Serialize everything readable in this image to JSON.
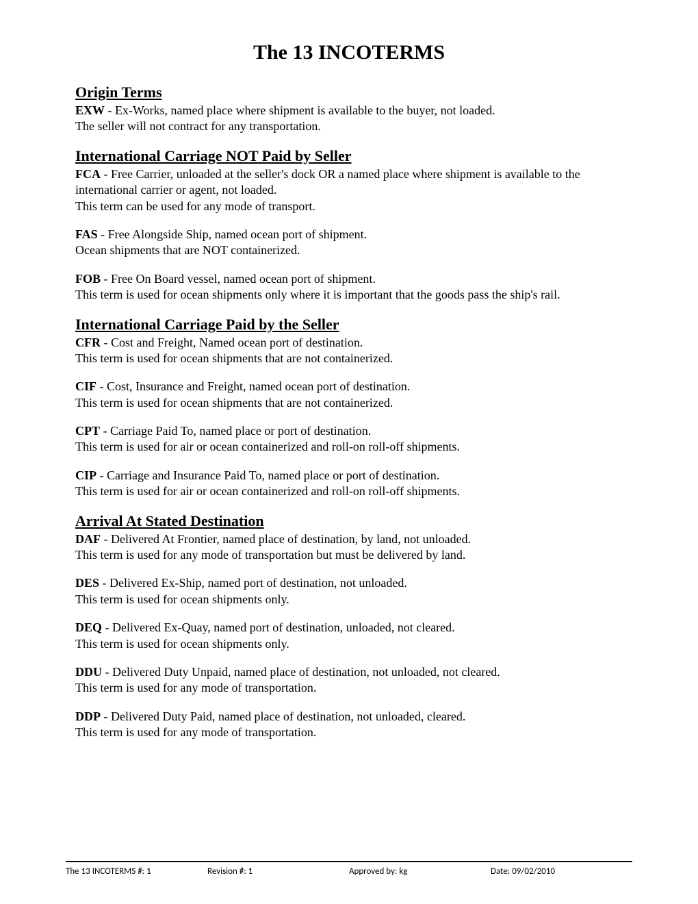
{
  "title": "The 13 INCOTERMS",
  "sections": [
    {
      "heading": "Origin Terms",
      "terms": [
        {
          "code": "EXW",
          "desc": " - Ex-Works, named place where shipment is available to the buyer, not loaded.",
          "note": "The seller will not contract for any transportation."
        }
      ]
    },
    {
      "heading": "International Carriage NOT Paid by Seller",
      "terms": [
        {
          "code": "FCA",
          "desc": " - Free Carrier, unloaded at the seller's dock OR a named place where shipment is available to the international carrier or agent, not loaded.",
          "note": "This term can be used for any mode of transport."
        },
        {
          "code": "FAS",
          "desc": " - Free Alongside Ship, named ocean port of shipment.",
          "note": "Ocean shipments that are NOT containerized."
        },
        {
          "code": "FOB",
          "desc": " - Free On Board vessel, named ocean port of shipment.",
          "note": "This term is used for ocean shipments only where it is important that the goods pass the ship's rail."
        }
      ]
    },
    {
      "heading": "International Carriage Paid by the Seller",
      "terms": [
        {
          "code": "CFR",
          "desc": " - Cost and Freight, Named ocean port of destination.",
          "note": "This term is used for ocean shipments that are not containerized."
        },
        {
          "code": "CIF",
          "desc": " - Cost, Insurance and Freight, named ocean port of destination.",
          "note": "This term is used for ocean shipments that are not containerized."
        },
        {
          "code": "CPT",
          "desc": " - Carriage Paid To, named place or port of destination.",
          "note": "This term is used for air or ocean containerized and roll-on roll-off shipments."
        },
        {
          "code": "CIP",
          "desc": " - Carriage and Insurance Paid To, named place or port of destination.",
          "note": "This term is used for air or ocean containerized and roll-on roll-off shipments."
        }
      ]
    },
    {
      "heading": "Arrival At Stated Destination",
      "terms": [
        {
          "code": "DAF",
          "desc": " - Delivered At Frontier, named place of destination, by land, not unloaded.",
          "note": "This term is used for any mode of transportation but must be delivered by land."
        },
        {
          "code": "DES",
          "desc": " - Delivered Ex-Ship, named port of destination, not unloaded.",
          "note": "This term is used for ocean shipments only."
        },
        {
          "code": "DEQ",
          "desc": " - Delivered Ex-Quay, named port of destination, unloaded, not cleared.",
          "note": "This term is used for ocean shipments only."
        },
        {
          "code": "DDU",
          "desc": " - Delivered Duty Unpaid, named place of destination, not unloaded, not cleared.",
          "note": "This term is used for any mode of transportation."
        },
        {
          "code": "DDP",
          "desc": " - Delivered Duty Paid, named place of destination, not unloaded, cleared.",
          "note": "This term is used for any mode of transportation."
        }
      ]
    }
  ],
  "footer": {
    "doc_id": "The 13 INCOTERMS #: 1",
    "revision": "Revision #: 1",
    "approved": "Approved by: kg",
    "date": "Date: 09/02/2010"
  }
}
